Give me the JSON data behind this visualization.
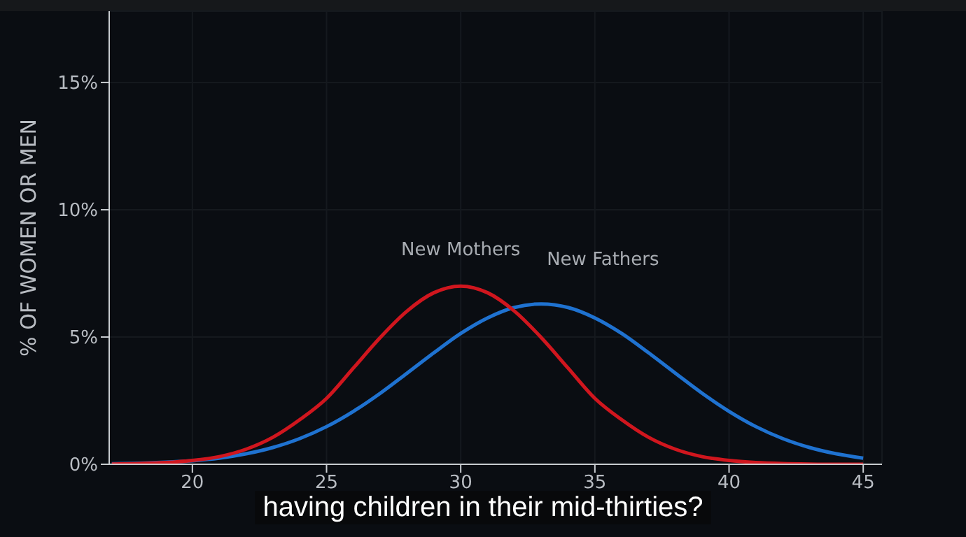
{
  "chart_data": {
    "type": "line",
    "ylabel": "% OF WOMEN OR MEN",
    "x": [
      17,
      18,
      19,
      20,
      21,
      22,
      23,
      24,
      25,
      26,
      27,
      28,
      29,
      30,
      31,
      32,
      33,
      34,
      35,
      36,
      37,
      38,
      39,
      40,
      41,
      42,
      43,
      44,
      45
    ],
    "series": [
      {
        "name": "New Mothers",
        "color": "#d0161e",
        "values": [
          0.01,
          0.03,
          0.07,
          0.15,
          0.3,
          0.59,
          1.06,
          1.75,
          2.59,
          3.78,
          4.98,
          6.02,
          6.74,
          7,
          6.74,
          6.02,
          4.98,
          3.78,
          2.59,
          1.75,
          1.06,
          0.59,
          0.3,
          0.15,
          0.07,
          0.03,
          0.01,
          0,
          0
        ]
      },
      {
        "name": "New Fathers",
        "color": "#1f72d0",
        "values": [
          0.02,
          0.04,
          0.08,
          0.14,
          0.24,
          0.41,
          0.66,
          1.01,
          1.48,
          2.08,
          2.79,
          3.58,
          4.38,
          5.14,
          5.75,
          6.16,
          6.3,
          6.16,
          5.75,
          5.14,
          4.38,
          3.58,
          2.79,
          2.08,
          1.48,
          1.01,
          0.66,
          0.41,
          0.24
        ]
      }
    ],
    "xlim": [
      16.9,
      45.7
    ],
    "xticks": [
      20,
      25,
      30,
      35,
      40,
      45
    ],
    "ylim": [
      0,
      17.8
    ],
    "yticks": [
      {
        "value": 0,
        "label": "0%"
      },
      {
        "value": 5,
        "label": "5%"
      },
      {
        "value": 10,
        "label": "10%"
      },
      {
        "value": 15,
        "label": "15%"
      }
    ],
    "grid": true,
    "marker": "none",
    "line_style": "solid",
    "annotations": [
      "having children in their mid-thirties?"
    ]
  }
}
